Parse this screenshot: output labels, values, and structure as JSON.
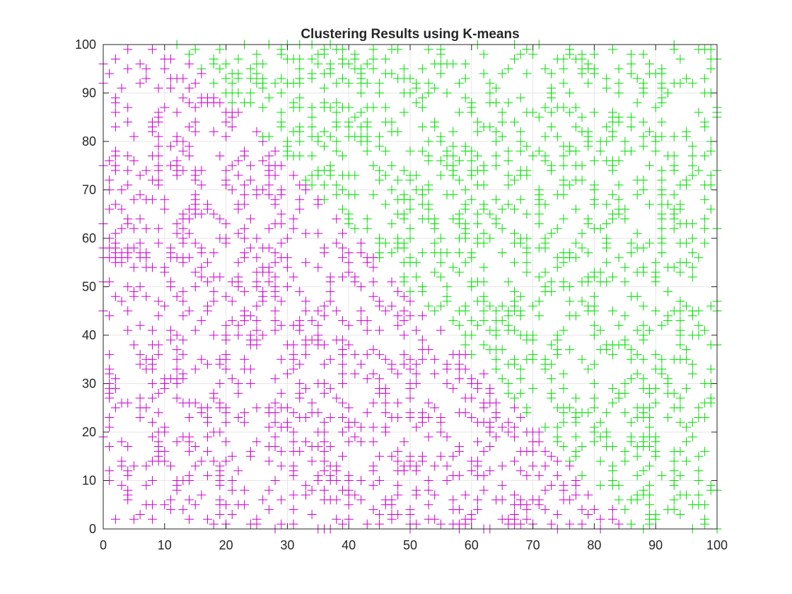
{
  "chart_data": {
    "type": "scatter",
    "title": "Clustering Results using K-means",
    "xlabel": "",
    "ylabel": "",
    "xlim": [
      0,
      100
    ],
    "ylim": [
      0,
      100
    ],
    "xticks": [
      0,
      10,
      20,
      30,
      40,
      50,
      60,
      70,
      80,
      90,
      100
    ],
    "yticks": [
      0,
      10,
      20,
      30,
      40,
      50,
      60,
      70,
      80,
      90,
      100
    ],
    "grid": true,
    "marker": "+",
    "n_points_per_cluster_approx": 1000,
    "series": [
      {
        "color": "#cc00cc",
        "centroid": [
          25.0,
          33.0
        ]
      },
      {
        "color": "#00dd00",
        "centroid": [
          72.0,
          68.0
        ]
      }
    ],
    "boundary_line": {
      "point": [
        48.5,
        50.5
      ],
      "normal": [
        47.0,
        35.0
      ]
    }
  }
}
